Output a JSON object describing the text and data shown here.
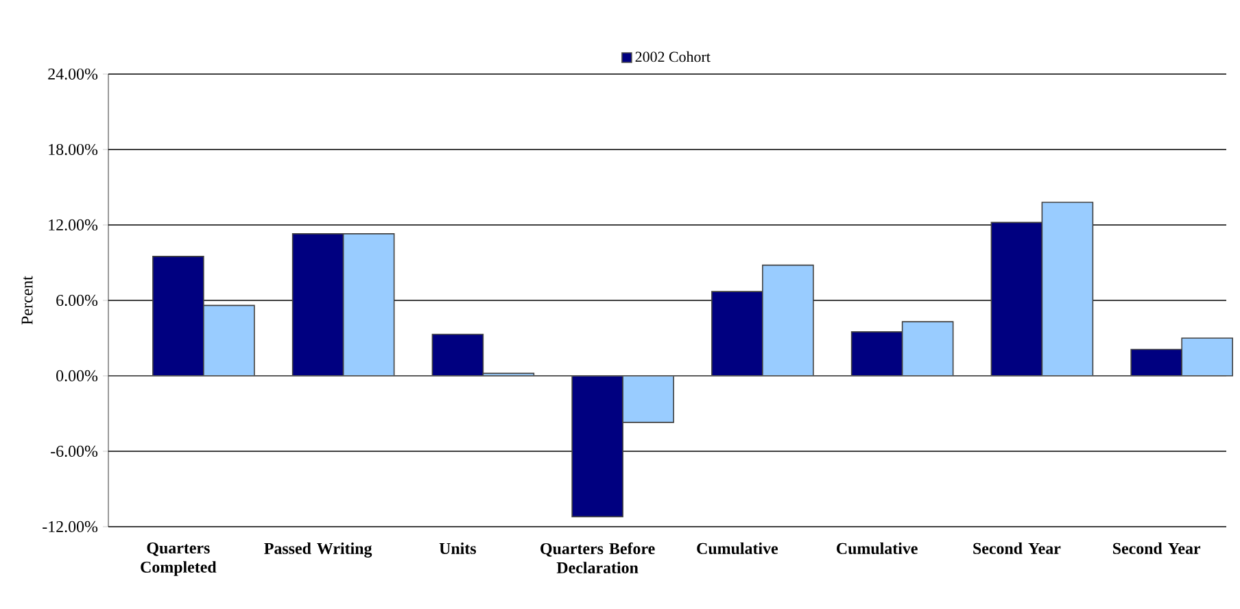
{
  "chart_data": {
    "type": "bar",
    "ylabel": "Percent",
    "categories": [
      "Quarters Completed",
      "Passed Writing",
      "Units",
      "Quarters Before Declaration",
      "Cumulative",
      "Cumulative",
      "Second Year",
      "Second Year"
    ],
    "series": [
      {
        "name": "2002 Cohort",
        "color": "#000080",
        "values": [
          9.5,
          11.3,
          3.3,
          -11.2,
          6.7,
          3.5,
          12.2,
          2.1
        ]
      },
      {
        "color": "#99ccff",
        "values": [
          5.6,
          11.3,
          0.2,
          -3.7,
          8.8,
          4.3,
          13.8,
          3.0
        ]
      }
    ],
    "ylim": [
      -12,
      24
    ],
    "yticks": [
      {
        "value": -12,
        "label": "-12.00%"
      },
      {
        "value": -6,
        "label": "-6.00%"
      },
      {
        "value": 0,
        "label": "0.00%"
      },
      {
        "value": 6,
        "label": "6.00%"
      },
      {
        "value": 12,
        "label": "12.00%"
      },
      {
        "value": 18,
        "label": "18.00%"
      },
      {
        "value": 24,
        "label": "24.00%"
      }
    ],
    "grid": "y",
    "legend": "top"
  }
}
